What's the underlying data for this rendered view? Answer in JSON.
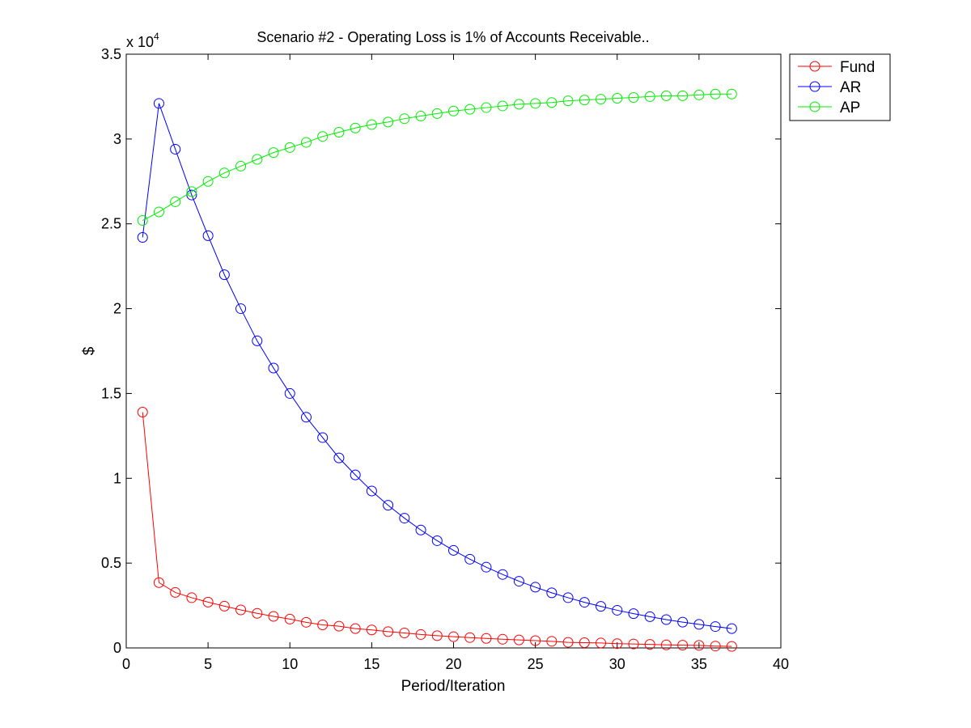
{
  "chart_data": {
    "type": "line",
    "title": "Scenario #2 - Operating Loss is 1% of Accounts Receivable..",
    "xlabel": "Period/Iteration",
    "ylabel": "$",
    "y_multiplier": {
      "base": "x 10",
      "exponent": "4"
    },
    "xlim": [
      0,
      40
    ],
    "ylim": [
      0,
      35000
    ],
    "x_ticks": [
      0,
      5,
      10,
      15,
      20,
      25,
      30,
      35,
      40
    ],
    "x_tick_labels": [
      "0",
      "5",
      "10",
      "15",
      "20",
      "25",
      "30",
      "35",
      "40"
    ],
    "y_ticks": [
      0,
      5000,
      10000,
      15000,
      20000,
      25000,
      30000,
      35000
    ],
    "y_tick_labels": [
      "0",
      "0.5",
      "1",
      "1.5",
      "2",
      "2.5",
      "3",
      "3.5"
    ],
    "grid": false,
    "legend_position": "top-right outside",
    "marker": "circle",
    "x": [
      1,
      2,
      3,
      4,
      5,
      6,
      7,
      8,
      9,
      10,
      11,
      12,
      13,
      14,
      15,
      16,
      17,
      18,
      19,
      20,
      21,
      22,
      23,
      24,
      25,
      26,
      27,
      28,
      29,
      30,
      31,
      32,
      33,
      34,
      35,
      36,
      37
    ],
    "series": [
      {
        "name": "Fund",
        "color": "#ff0000",
        "values": [
          13900,
          3850,
          3270,
          2960,
          2700,
          2460,
          2240,
          2040,
          1860,
          1700,
          1510,
          1360,
          1280,
          1140,
          1060,
          960,
          880,
          790,
          720,
          660,
          610,
          560,
          510,
          470,
          430,
          390,
          330,
          310,
          290,
          250,
          230,
          210,
          180,
          160,
          150,
          110,
          90
        ]
      },
      {
        "name": "AR",
        "color": "#0000ff",
        "values": [
          24200,
          32100,
          29400,
          26700,
          24300,
          22000,
          20000,
          18100,
          16500,
          15000,
          13600,
          12400,
          11200,
          10200,
          9250,
          8410,
          7650,
          6950,
          6320,
          5750,
          5230,
          4760,
          4330,
          3930,
          3580,
          3250,
          2960,
          2690,
          2450,
          2220,
          2020,
          1840,
          1670,
          1520,
          1390,
          1260,
          1140
        ]
      },
      {
        "name": "AP",
        "color": "#00ee00",
        "values": [
          25200,
          25700,
          26300,
          26900,
          27500,
          28000,
          28400,
          28800,
          29200,
          29500,
          29800,
          30150,
          30400,
          30650,
          30850,
          31000,
          31200,
          31350,
          31500,
          31650,
          31750,
          31850,
          31950,
          32050,
          32100,
          32150,
          32250,
          32300,
          32350,
          32400,
          32450,
          32500,
          32550,
          32550,
          32600,
          32650,
          32650
        ]
      }
    ]
  }
}
